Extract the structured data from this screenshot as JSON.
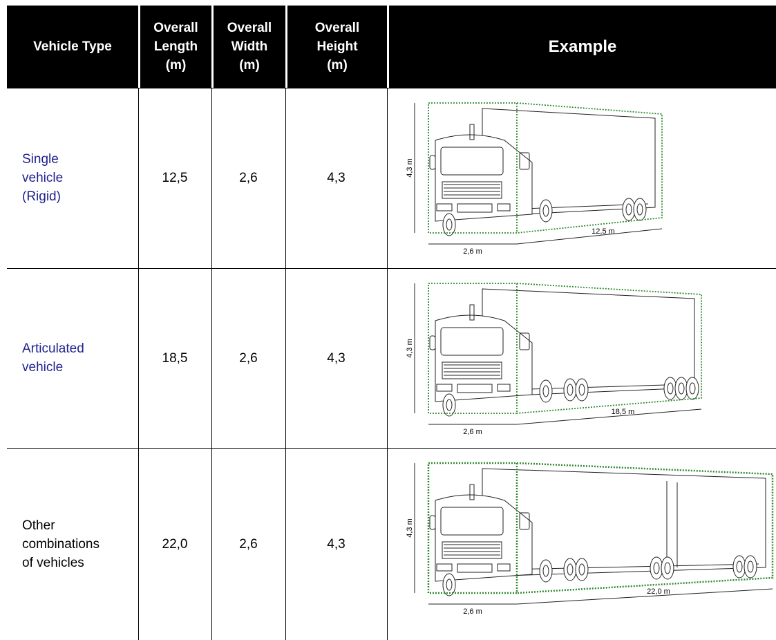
{
  "header": [
    "Vehicle Type",
    "Overall Length (m)",
    "Overall Width (m)",
    "Overall Height (m)",
    "Example"
  ],
  "rows": [
    {
      "type": [
        "Single",
        "vehicle",
        "(Rigid)"
      ],
      "length": "12,5",
      "width": "2,6",
      "height": "4,3",
      "example": {
        "height_label": "4,3 m",
        "width_label": "2,6 m",
        "length_label": "12,5 m"
      }
    },
    {
      "type": [
        "Articulated",
        "vehicle"
      ],
      "length": "18,5",
      "width": "2,6",
      "height": "4,3",
      "example": {
        "height_label": "4,3 m",
        "width_label": "2,6 m",
        "length_label": "18,5 m"
      }
    },
    {
      "type": [
        "Other",
        "combinations",
        "of vehicles"
      ],
      "length": "22,0",
      "width": "2,6",
      "height": "4,3",
      "example": {
        "height_label": "4,3 m",
        "width_label": "2,6 m",
        "length_label": "22,0 m"
      }
    }
  ]
}
